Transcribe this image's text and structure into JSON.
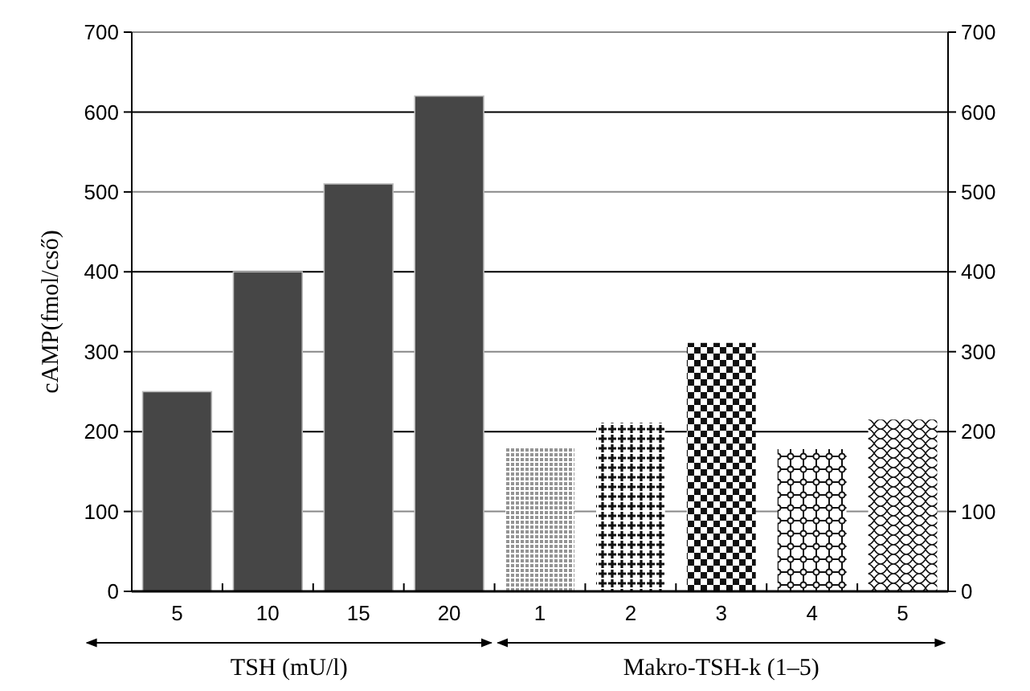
{
  "chart_data": {
    "type": "bar",
    "ylabel": "cAMP(fmol/cső)",
    "categories": [
      "5",
      "10",
      "15",
      "20",
      "1",
      "2",
      "3",
      "4",
      "5"
    ],
    "series": [
      {
        "color": "#464646",
        "values": [
          250,
          400,
          510,
          620,
          null,
          null,
          null,
          null,
          null
        ]
      },
      {
        "color": "#111111",
        "values": [
          null,
          null,
          null,
          null,
          181,
          211,
          311,
          178,
          215
        ]
      }
    ],
    "ylim": [
      0,
      700
    ],
    "yticks": [
      0,
      100,
      200,
      300,
      400,
      500,
      600,
      700
    ],
    "y2lim": [
      0,
      700
    ],
    "y2ticks": [
      0,
      100,
      200,
      300,
      400,
      500,
      600,
      700
    ],
    "grid": "y",
    "annotations": [
      "TSH (mU/l)",
      "Makro-TSH-k (1–5)"
    ]
  }
}
